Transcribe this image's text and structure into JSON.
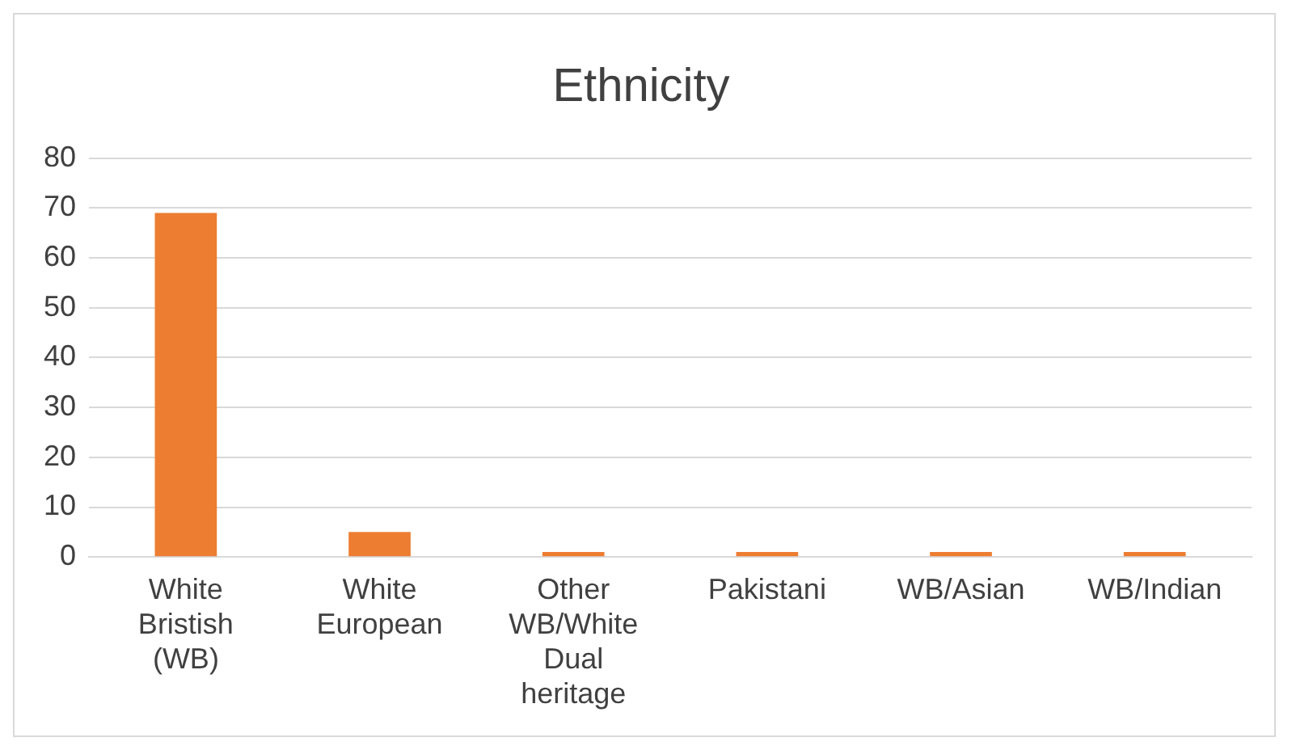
{
  "chart_data": {
    "type": "bar",
    "title": "Ethnicity",
    "categories": [
      "White Bristish (WB)",
      "White European",
      "Other WB/White Dual heritage",
      "Pakistani",
      "WB/Asian",
      "WB/Indian"
    ],
    "values": [
      69,
      5,
      1,
      1,
      1,
      1
    ],
    "color": "#ed7d31",
    "ylim": [
      0,
      80
    ],
    "yticks": [
      0,
      10,
      20,
      30,
      40,
      50,
      60,
      70,
      80
    ],
    "grid": "y",
    "legend": false
  }
}
